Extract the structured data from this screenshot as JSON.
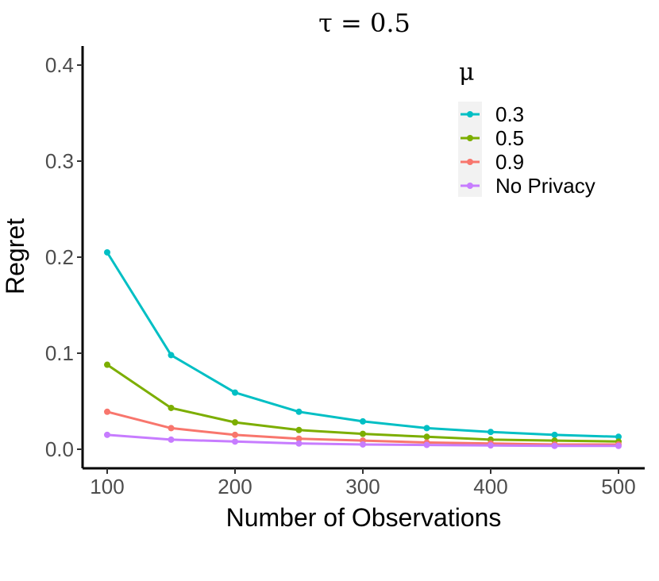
{
  "chart_data": {
    "type": "line",
    "title": "τ = 0.5",
    "xlabel": "Number of Observations",
    "ylabel": "Regret",
    "x": [
      100,
      150,
      200,
      250,
      300,
      350,
      400,
      450,
      500
    ],
    "xticks": [
      100,
      200,
      300,
      400,
      500
    ],
    "yticks": [
      0.0,
      0.1,
      0.2,
      0.3,
      0.4
    ],
    "xtick_labels": [
      "100",
      "200",
      "300",
      "400",
      "500"
    ],
    "ytick_labels": [
      "0.0",
      "0.1",
      "0.2",
      "0.3",
      "0.4"
    ],
    "xlim": [
      100,
      500
    ],
    "ylim": [
      0.0,
      0.4
    ],
    "grid": false,
    "legend_title": "μ",
    "legend_position": "top-right",
    "series": [
      {
        "name": "0.3",
        "color": "#00BFC4",
        "values": [
          0.205,
          0.098,
          0.059,
          0.039,
          0.029,
          0.022,
          0.018,
          0.015,
          0.013
        ]
      },
      {
        "name": "0.5",
        "color": "#7CAE00",
        "values": [
          0.088,
          0.043,
          0.028,
          0.02,
          0.016,
          0.013,
          0.01,
          0.009,
          0.008
        ]
      },
      {
        "name": "0.9",
        "color": "#F8766D",
        "values": [
          0.039,
          0.022,
          0.015,
          0.011,
          0.009,
          0.007,
          0.006,
          0.005,
          0.005
        ]
      },
      {
        "name": "No Privacy",
        "color": "#C77CFF",
        "values": [
          0.015,
          0.01,
          0.008,
          0.006,
          0.005,
          0.0045,
          0.004,
          0.0035,
          0.0035
        ]
      }
    ]
  }
}
